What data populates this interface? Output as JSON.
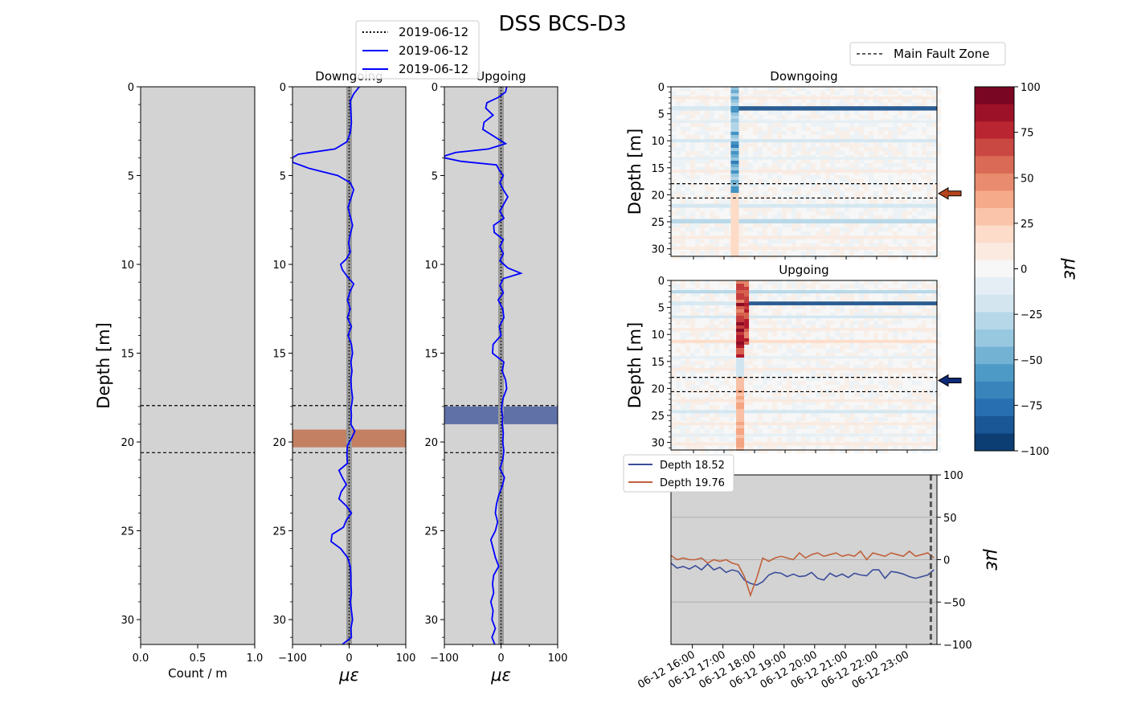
{
  "title": "DSS BCS-D3",
  "colors": {
    "panel_bg": "#d3d3d3",
    "trace": "#0000ff",
    "series_shallow": "#3b4d9a",
    "series_deep": "#c0623c",
    "band_shallow": "#4b5fa0",
    "band_deep": "#c0714f",
    "arrow_shallow": "#0d2a78",
    "arrow_deep": "#b5441c"
  },
  "chart_data": [
    {
      "id": "count",
      "type": "line",
      "xlabel": "Count / m",
      "ylabel": "Depth [m]",
      "xlim": [
        0,
        1
      ],
      "ylim": [
        31.4,
        0
      ],
      "xticks": [
        "0.0",
        "0.5",
        "1.0"
      ],
      "yticks": [
        "0",
        "5",
        "10",
        "15",
        "20",
        "25",
        "30"
      ],
      "fault_lines": [
        17.95,
        20.6
      ]
    },
    {
      "id": "downgoing_profile",
      "type": "line",
      "title": "Downgoing",
      "xlabel": "με",
      "xlim": [
        -100,
        100
      ],
      "ylim": [
        31.4,
        0
      ],
      "xticks": [
        "−100",
        "0",
        "100"
      ],
      "yticks": [
        "0",
        "5",
        "10",
        "15",
        "20",
        "25",
        "30"
      ],
      "fault_lines": [
        17.95,
        20.6
      ],
      "highlight_band": [
        19.3,
        20.3
      ],
      "legend": [
        "2019-06-12",
        "2019-06-12",
        "2019-06-12"
      ],
      "series": [
        {
          "depth": [
            0,
            0.4,
            0.8,
            1.4,
            2.0,
            2.6,
            3.1,
            3.5,
            3.8,
            4.0,
            4.25,
            4.6,
            5.0,
            5.4,
            5.8,
            6.3,
            6.8,
            7.3,
            7.8,
            8.3,
            8.8,
            9.3,
            9.7,
            10.0,
            10.3,
            10.7,
            11.1,
            11.5,
            12.0,
            12.5,
            13.0,
            13.5,
            14.0,
            14.5,
            15.0,
            15.5,
            16.0,
            16.5,
            17.0,
            17.5,
            17.8,
            18.1,
            18.5,
            19.0,
            19.4,
            19.8,
            20.2,
            20.7,
            21.2,
            21.6,
            22.0,
            22.4,
            22.8,
            23.2,
            23.6,
            24.0,
            24.4,
            24.8,
            25.2,
            25.6,
            26.0,
            26.5,
            27.0,
            27.5,
            28.0,
            28.5,
            29.0,
            29.5,
            30.0,
            30.5,
            31.0,
            31.4
          ],
          "strain": [
            18,
            8,
            2,
            3,
            4,
            2,
            -4,
            -25,
            -90,
            -100,
            -100,
            -70,
            -20,
            2,
            8,
            3,
            -2,
            2,
            6,
            2,
            -1,
            2,
            -5,
            -15,
            -12,
            -3,
            8,
            2,
            -3,
            2,
            -3,
            4,
            -2,
            4,
            6,
            3,
            5,
            3,
            4,
            6,
            5,
            3,
            4,
            3,
            10,
            4,
            -3,
            -4,
            -3,
            -18,
            -12,
            -5,
            -14,
            -18,
            -5,
            4,
            -5,
            -10,
            -30,
            -32,
            -15,
            -3,
            2,
            3,
            3,
            4,
            2,
            4,
            6,
            3,
            4,
            -12
          ]
        }
      ]
    },
    {
      "id": "upgoing_profile",
      "type": "line",
      "title": "Upgoing",
      "xlabel": "με",
      "xlim": [
        -100,
        100
      ],
      "ylim": [
        31.4,
        0
      ],
      "xticks": [
        "−100",
        "0",
        "100"
      ],
      "yticks": [
        "0",
        "5",
        "10",
        "15",
        "20",
        "25",
        "30"
      ],
      "fault_lines": [
        17.95,
        20.6
      ],
      "highlight_band": [
        18.0,
        19.0
      ],
      "series": [
        {
          "depth": [
            0,
            0.3,
            0.6,
            0.9,
            1.2,
            1.6,
            2.0,
            2.4,
            2.8,
            3.2,
            3.5,
            3.7,
            3.9,
            4.0,
            4.2,
            4.4,
            4.7,
            5.0,
            5.4,
            5.8,
            6.2,
            6.6,
            7.0,
            7.4,
            7.8,
            8.2,
            8.6,
            9.0,
            9.4,
            9.8,
            10.2,
            10.5,
            10.8,
            11.2,
            11.6,
            12.0,
            12.5,
            13.0,
            13.5,
            14.0,
            14.5,
            15.0,
            15.5,
            16.0,
            16.5,
            17.0,
            17.5,
            17.8,
            18.2,
            18.6,
            19.0,
            19.5,
            20.0,
            20.5,
            21.0,
            21.5,
            22.0,
            22.5,
            23.0,
            23.5,
            24.0,
            24.5,
            25.0,
            25.5,
            26.0,
            26.5,
            27.0,
            27.5,
            28.0,
            28.5,
            29.0,
            29.5,
            30.0,
            30.5,
            31.0,
            31.4
          ],
          "strain": [
            10,
            8,
            -5,
            -25,
            -27,
            -14,
            -30,
            -32,
            -12,
            8,
            -22,
            -80,
            -100,
            -100,
            -70,
            -8,
            -3,
            4,
            -2,
            4,
            12,
            5,
            -2,
            5,
            -13,
            -12,
            4,
            -2,
            4,
            -2,
            12,
            35,
            4,
            -2,
            4,
            -5,
            3,
            5,
            -3,
            0,
            -14,
            -15,
            5,
            2,
            8,
            10,
            4,
            2,
            1,
            3,
            2,
            4,
            3,
            5,
            3,
            -2,
            6,
            2,
            -4,
            -8,
            -10,
            -6,
            -10,
            -18,
            -14,
            -10,
            -4,
            -13,
            -15,
            -13,
            -18,
            -14,
            -16,
            -10,
            -16,
            -11
          ]
        }
      ]
    },
    {
      "id": "downgoing_waterfall",
      "type": "heatmap",
      "title": "Downgoing",
      "ylabel": "Depth [m]",
      "ylim": [
        31.4,
        0
      ],
      "yticks": [
        "0",
        "5",
        "10",
        "15",
        "20",
        "25",
        "30"
      ],
      "fault_lines": [
        17.95,
        20.6
      ],
      "marker_depth": 19.76,
      "event_time_fraction": 0.24,
      "bands": [
        {
          "depth_from": 3.6,
          "depth_to": 4.4,
          "value": -90
        },
        {
          "depth_from": 1.8,
          "depth_to": 2.3,
          "value": 8
        },
        {
          "depth_from": 6.2,
          "depth_to": 6.7,
          "value": -12
        },
        {
          "depth_from": 9.7,
          "depth_to": 10.3,
          "value": -22
        },
        {
          "depth_from": 13.0,
          "depth_to": 13.5,
          "value": -8
        },
        {
          "depth_from": 15.4,
          "depth_to": 15.9,
          "value": 10
        },
        {
          "depth_from": 21.7,
          "depth_to": 22.4,
          "value": -25
        },
        {
          "depth_from": 24.5,
          "depth_to": 25.3,
          "value": -28
        },
        {
          "depth_from": 27.6,
          "depth_to": 28.2,
          "value": 10
        },
        {
          "depth_from": 29.6,
          "depth_to": 30.2,
          "value": 8
        }
      ]
    },
    {
      "id": "upgoing_waterfall",
      "type": "heatmap",
      "title": "Upgoing",
      "ylabel": "Depth [m]",
      "ylim": [
        31.4,
        0
      ],
      "yticks": [
        "0",
        "5",
        "10",
        "15",
        "20",
        "25",
        "30"
      ],
      "fault_lines": [
        17.95,
        20.6
      ],
      "marker_depth": 18.52,
      "event_time_fraction": 0.26,
      "bands": [
        {
          "depth_from": 1.8,
          "depth_to": 2.4,
          "value": -30
        },
        {
          "depth_from": 3.9,
          "depth_to": 4.6,
          "value": -95
        },
        {
          "depth_from": 6.5,
          "depth_to": 7.0,
          "value": -18
        },
        {
          "depth_from": 8.8,
          "depth_to": 9.3,
          "value": 12
        },
        {
          "depth_from": 11.0,
          "depth_to": 11.6,
          "value": 18
        },
        {
          "depth_from": 14.0,
          "depth_to": 14.5,
          "value": -10
        },
        {
          "depth_from": 16.2,
          "depth_to": 16.7,
          "value": 10
        },
        {
          "depth_from": 22.0,
          "depth_to": 22.5,
          "value": 12
        },
        {
          "depth_from": 24.0,
          "depth_to": 24.6,
          "value": -18
        },
        {
          "depth_from": 26.3,
          "depth_to": 26.8,
          "value": 10
        },
        {
          "depth_from": 28.4,
          "depth_to": 28.9,
          "value": -12
        },
        {
          "depth_from": 30.0,
          "depth_to": 30.6,
          "value": 12
        }
      ]
    },
    {
      "id": "colorbar",
      "type": "heatmap",
      "label": "με",
      "range": [
        -100,
        100
      ],
      "ticks": [
        "100",
        "75",
        "50",
        "25",
        "0",
        "−25",
        "−50",
        "−75",
        "−100"
      ],
      "levels": 21
    },
    {
      "id": "timeseries",
      "type": "line",
      "ylabel": "με",
      "ylim": [
        -100,
        100
      ],
      "yticks": [
        "100",
        "50",
        "0",
        "−50",
        "−100"
      ],
      "xticks": [
        "06-12 16:00",
        "06-12 17:00",
        "06-12 18:00",
        "06-12 19:00",
        "06-12 20:00",
        "06-12 21:00",
        "06-12 22:00",
        "06-12 23:00"
      ],
      "x_start_hour": 15.3,
      "x_end_hour": 24.0,
      "vline_hour": 23.8,
      "series": [
        {
          "name": "Depth 18.52",
          "hours": [
            15.3,
            15.5,
            15.7,
            15.9,
            16.1,
            16.3,
            16.5,
            16.7,
            16.9,
            17.1,
            17.3,
            17.5,
            17.7,
            17.9,
            18.1,
            18.3,
            18.5,
            18.7,
            18.9,
            19.1,
            19.3,
            19.5,
            19.7,
            19.9,
            20.1,
            20.3,
            20.5,
            20.7,
            20.9,
            21.1,
            21.3,
            21.5,
            21.7,
            21.9,
            22.1,
            22.3,
            22.5,
            22.7,
            22.9,
            23.1,
            23.3,
            23.5,
            23.7,
            23.9
          ],
          "values": [
            -4,
            -10,
            -8,
            -11,
            -7,
            -12,
            -5,
            -12,
            -9,
            -15,
            -12,
            -14,
            -24,
            -28,
            -30,
            -26,
            -18,
            -15,
            -16,
            -20,
            -17,
            -20,
            -19,
            -15,
            -22,
            -24,
            -16,
            -20,
            -17,
            -21,
            -16,
            -18,
            -19,
            -12,
            -12,
            -22,
            -14,
            -15,
            -17,
            -20,
            -22,
            -20,
            -18,
            -12
          ]
        },
        {
          "name": "Depth 19.76",
          "hours": [
            15.3,
            15.5,
            15.7,
            15.9,
            16.1,
            16.3,
            16.5,
            16.7,
            16.9,
            17.1,
            17.3,
            17.5,
            17.7,
            17.9,
            18.1,
            18.3,
            18.5,
            18.7,
            18.9,
            19.1,
            19.3,
            19.5,
            19.7,
            19.9,
            20.1,
            20.3,
            20.5,
            20.7,
            20.9,
            21.1,
            21.3,
            21.5,
            21.7,
            21.9,
            22.1,
            22.3,
            22.5,
            22.7,
            22.9,
            23.1,
            23.3,
            23.5,
            23.7,
            23.9
          ],
          "values": [
            5,
            0,
            2,
            0,
            0,
            2,
            -4,
            0,
            -2,
            0,
            -4,
            -6,
            -20,
            -42,
            -22,
            2,
            -2,
            2,
            4,
            2,
            0,
            8,
            2,
            6,
            8,
            4,
            6,
            8,
            4,
            6,
            4,
            10,
            0,
            8,
            6,
            4,
            8,
            6,
            4,
            10,
            4,
            6,
            8,
            2
          ]
        }
      ]
    }
  ],
  "fault_legend": "Main Fault Zone"
}
